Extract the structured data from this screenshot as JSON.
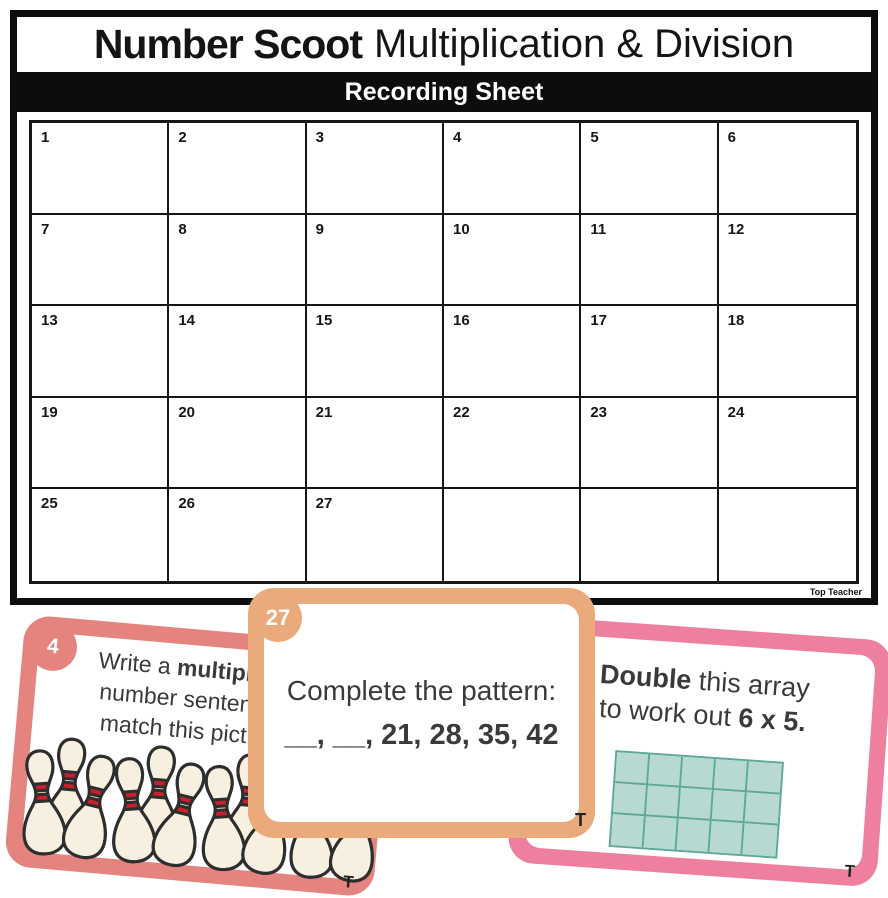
{
  "sheet": {
    "title_bold": "Number Scoot",
    "title_regular": "Multiplication & Division",
    "bar_label": "Recording Sheet",
    "brand": "Top Teacher",
    "grid": {
      "rows": 5,
      "cols": 6,
      "cells": [
        "1",
        "2",
        "3",
        "4",
        "5",
        "6",
        "7",
        "8",
        "9",
        "10",
        "11",
        "12",
        "13",
        "14",
        "15",
        "16",
        "17",
        "18",
        "19",
        "20",
        "21",
        "22",
        "23",
        "24",
        "25",
        "26",
        "27",
        "",
        "",
        ""
      ]
    }
  },
  "cards": {
    "left": {
      "badge": "4",
      "accent": "#e5837f",
      "line1_pre": "Write a ",
      "line1_bold": "multipli",
      "line2": "number senten",
      "line3": "match this pict",
      "logo": "T",
      "pins": {
        "groups": 4,
        "pins_per_group": 3,
        "body_color": "#f7efdf",
        "stripe_color": "#c9202b",
        "outline_color": "#2e2e2e"
      }
    },
    "middle": {
      "badge": "27",
      "accent": "#ebaa7b",
      "line1": "Complete the pattern:",
      "line2": "__, __, 21, 28, 35, 42",
      "logo": "T"
    },
    "right": {
      "accent": "#ee7f9f",
      "line1_bold": "Double",
      "line1_rest": " this array",
      "line2_pre": "to work out ",
      "line2_bold": "6 x 5.",
      "logo": "T",
      "array": {
        "rows": 3,
        "cols": 5,
        "fill": "#b7d9d1",
        "stroke": "#5ea89a"
      }
    }
  }
}
